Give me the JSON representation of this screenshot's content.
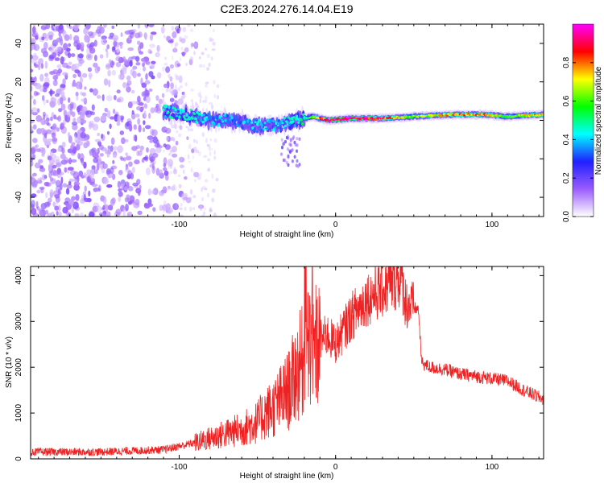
{
  "title": "C2E3.2024.276.14.04.E19",
  "chart_data": [
    {
      "type": "heatmap",
      "title": "C2E3.2024.276.14.04.E19",
      "xlabel": "Height of straight line (km)",
      "ylabel": "Frequency (Hz)",
      "xlim": [
        -195,
        133
      ],
      "ylim": [
        -50,
        50
      ],
      "x_ticks": [
        -100,
        0,
        100
      ],
      "y_ticks": [
        -40,
        -20,
        0,
        20,
        40
      ],
      "colorbar": {
        "label": "Normalized spectral amplitude",
        "range": [
          0,
          1
        ],
        "ticks": [
          "0.0",
          "0.2",
          "0.4",
          "0.6",
          "0.8"
        ],
        "colors": [
          "#ffffff",
          "#9a5cff",
          "#2020ff",
          "#00ffff",
          "#00ff00",
          "#ffff00",
          "#ff0000",
          "#ff00ff"
        ]
      },
      "description_of_signal": {
        "noise_region_x": [
          -195,
          -85
        ],
        "scattered_noise_x": [
          -110,
          -75
        ],
        "signal_track": [
          {
            "x": -110,
            "f": 5,
            "amp": 0.45
          },
          {
            "x": -95,
            "f": 3,
            "amp": 0.45
          },
          {
            "x": -80,
            "f": 0,
            "amp": 0.4
          },
          {
            "x": -65,
            "f": 0,
            "amp": 0.35
          },
          {
            "x": -50,
            "f": -3,
            "amp": 0.4
          },
          {
            "x": -35,
            "f": -2,
            "amp": 0.4
          },
          {
            "x": -25,
            "f": 0,
            "amp": 0.45
          },
          {
            "x": -15,
            "f": 2,
            "amp": 0.6
          },
          {
            "x": -5,
            "f": 0,
            "amp": 0.9
          },
          {
            "x": 10,
            "f": 1,
            "amp": 0.95
          },
          {
            "x": 30,
            "f": 1,
            "amp": 0.85
          },
          {
            "x": 50,
            "f": 2,
            "amp": 0.6
          },
          {
            "x": 75,
            "f": 3,
            "amp": 0.75
          },
          {
            "x": 95,
            "f": 3,
            "amp": 0.8
          },
          {
            "x": 110,
            "f": 2,
            "amp": 0.55
          },
          {
            "x": 133,
            "f": 3,
            "amp": 0.8
          }
        ]
      }
    },
    {
      "type": "line",
      "xlabel": "Height of straight line (km)",
      "ylabel": "SNR (10 * v/v)",
      "xlim": [
        -195,
        133
      ],
      "ylim": [
        0,
        4200
      ],
      "x_ticks": [
        -100,
        0,
        100
      ],
      "y_ticks": [
        0,
        1000,
        2000,
        3000,
        4000
      ],
      "color": "#ee2222",
      "series": [
        {
          "name": "SNR",
          "x": [
            -195,
            -150,
            -110,
            -90,
            -80,
            -70,
            -60,
            -50,
            -45,
            -40,
            -35,
            -30,
            -25,
            -20,
            -15,
            -12,
            -10,
            -5,
            0,
            10,
            20,
            30,
            38,
            42,
            45,
            50,
            53,
            55,
            60,
            70,
            80,
            90,
            100,
            110,
            120,
            133
          ],
          "values": [
            150,
            150,
            200,
            350,
            450,
            550,
            650,
            800,
            1000,
            1100,
            1300,
            1500,
            1900,
            2200,
            2500,
            2400,
            2600,
            2700,
            2500,
            3100,
            3500,
            3700,
            3900,
            3950,
            3400,
            3300,
            3250,
            2100,
            2000,
            1950,
            1850,
            1800,
            1750,
            1700,
            1500,
            1300
          ]
        }
      ]
    }
  ]
}
